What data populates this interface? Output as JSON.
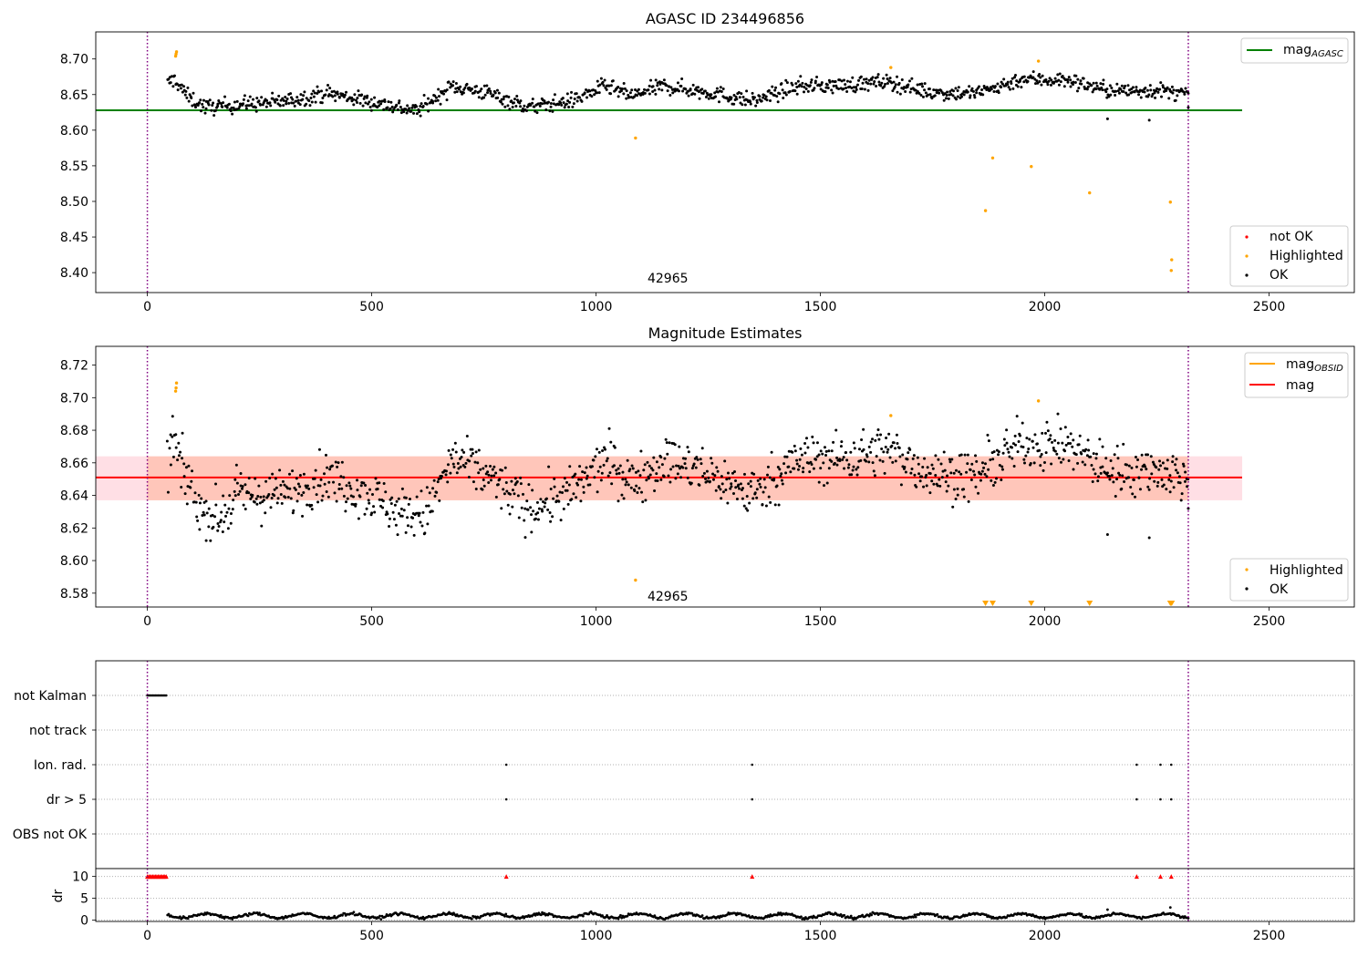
{
  "chart_data": [
    {
      "type": "scatter",
      "title": "AGASC ID 234496856",
      "xlim": [
        -115,
        2690
      ],
      "ylim": [
        8.372,
        8.738
      ],
      "xticks": [
        0,
        500,
        1000,
        1500,
        2000,
        2500
      ],
      "yticks": [
        8.4,
        8.45,
        8.5,
        8.55,
        8.6,
        8.65,
        8.7
      ],
      "ytick_labels": [
        "8.40",
        "8.45",
        "8.50",
        "8.55",
        "8.60",
        "8.65",
        "8.70"
      ],
      "grid": false,
      "vlines": [
        0,
        2320
      ],
      "obsid_labels": [
        {
          "x": 1160,
          "y": 8.386,
          "text": "42965"
        }
      ],
      "hline": {
        "name": "mag",
        "subscript": "AGASC",
        "value": 8.628,
        "x_range": [
          -115,
          2440
        ],
        "color": "#008000"
      },
      "legend_upper": {
        "placement": "top-right",
        "entries": [
          {
            "label": "mag",
            "subscript": "AGASC",
            "kind": "line",
            "color": "#008000"
          }
        ]
      },
      "legend_lower": {
        "placement": "bottom-right",
        "entries": [
          {
            "label": "not OK",
            "kind": "dot",
            "color": "#ff0000"
          },
          {
            "label": "Highlighted",
            "kind": "dot",
            "color": "#ffa500"
          },
          {
            "label": "OK",
            "kind": "dot",
            "color": "#000000"
          }
        ]
      },
      "series": [
        {
          "name": "OK",
          "color": "#000000",
          "generated": true,
          "trend": [
            [
              45,
              8.665
            ],
            [
              60,
              8.672
            ],
            [
              90,
              8.647
            ],
            [
              130,
              8.632
            ],
            [
              200,
              8.636
            ],
            [
              300,
              8.64
            ],
            [
              400,
              8.652
            ],
            [
              500,
              8.64
            ],
            [
              600,
              8.627
            ],
            [
              680,
              8.662
            ],
            [
              760,
              8.652
            ],
            [
              850,
              8.632
            ],
            [
              950,
              8.642
            ],
            [
              1020,
              8.662
            ],
            [
              1080,
              8.648
            ],
            [
              1150,
              8.662
            ],
            [
              1250,
              8.653
            ],
            [
              1350,
              8.641
            ],
            [
              1450,
              8.662
            ],
            [
              1550,
              8.663
            ],
            [
              1650,
              8.668
            ],
            [
              1750,
              8.653
            ],
            [
              1850,
              8.652
            ],
            [
              1950,
              8.672
            ],
            [
              2050,
              8.67
            ],
            [
              2150,
              8.655
            ],
            [
              2250,
              8.656
            ],
            [
              2320,
              8.65
            ]
          ],
          "noise": 0.0055,
          "count": 1150,
          "outliers": [
            [
              2140,
              8.616
            ],
            [
              2233,
              8.614
            ],
            [
              2320,
              8.632
            ]
          ]
        },
        {
          "name": "Highlighted",
          "color": "#ffa500",
          "points": [
            [
              63,
              8.704
            ],
            [
              64,
              8.707
            ],
            [
              65,
              8.71
            ],
            [
              1088,
              8.589
            ],
            [
              1657,
              8.688
            ],
            [
              1868,
              8.487
            ],
            [
              1884,
              8.561
            ],
            [
              1970,
              8.549
            ],
            [
              1986,
              8.697
            ],
            [
              2100,
              8.512
            ],
            [
              2280,
              8.499
            ],
            [
              2283,
              8.418
            ],
            [
              2282,
              8.403
            ]
          ]
        }
      ]
    },
    {
      "type": "scatter",
      "title": "Magnitude Estimates",
      "xlim": [
        -115,
        2690
      ],
      "ylim": [
        8.5715,
        8.7315
      ],
      "xticks": [
        0,
        500,
        1000,
        1500,
        2000,
        2500
      ],
      "yticks": [
        8.58,
        8.6,
        8.62,
        8.64,
        8.66,
        8.68,
        8.7,
        8.72
      ],
      "ytick_labels": [
        "8.58",
        "8.60",
        "8.62",
        "8.64",
        "8.66",
        "8.68",
        "8.70",
        "8.72"
      ],
      "grid": false,
      "vlines": [
        0,
        2320
      ],
      "obsid_labels": [
        {
          "x": 1160,
          "y": 8.5755,
          "text": "42965"
        }
      ],
      "mag": {
        "value": 8.651,
        "band": [
          8.637,
          8.664
        ],
        "x_range": [
          -115,
          2440
        ],
        "color": "#ff0000",
        "band_color": "#ffc0cb",
        "obsid_band_color": "#ffa07a",
        "obsid_x_range": [
          0,
          2320
        ]
      },
      "off_scale_markers": {
        "marker": "triangle-down",
        "color": "#ffa500",
        "x": [
          1868,
          1884,
          1970,
          2100,
          2280,
          2283
        ]
      },
      "legend_upper": {
        "placement": "top-right",
        "entries": [
          {
            "label": "mag",
            "subscript": "OBSID",
            "kind": "line",
            "color": "#ffa500"
          },
          {
            "label": "mag",
            "kind": "line",
            "color": "#ff0000"
          }
        ]
      },
      "legend_lower": {
        "placement": "bottom-right",
        "entries": [
          {
            "label": "Highlighted",
            "kind": "dot",
            "color": "#ffa500"
          },
          {
            "label": "OK",
            "kind": "dot",
            "color": "#000000"
          }
        ]
      },
      "series": [
        {
          "name": "OK",
          "color": "#000000",
          "generated": true,
          "trend": [
            [
              45,
              8.66
            ],
            [
              58,
              8.675
            ],
            [
              85,
              8.65
            ],
            [
              120,
              8.632
            ],
            [
              160,
              8.625
            ],
            [
              200,
              8.64
            ],
            [
              300,
              8.64
            ],
            [
              400,
              8.652
            ],
            [
              500,
              8.64
            ],
            [
              560,
              8.63
            ],
            [
              620,
              8.628
            ],
            [
              680,
              8.662
            ],
            [
              760,
              8.652
            ],
            [
              850,
              8.632
            ],
            [
              950,
              8.642
            ],
            [
              1020,
              8.662
            ],
            [
              1080,
              8.648
            ],
            [
              1150,
              8.662
            ],
            [
              1250,
              8.653
            ],
            [
              1350,
              8.641
            ],
            [
              1450,
              8.662
            ],
            [
              1550,
              8.663
            ],
            [
              1650,
              8.668
            ],
            [
              1750,
              8.653
            ],
            [
              1850,
              8.652
            ],
            [
              1950,
              8.672
            ],
            [
              2050,
              8.67
            ],
            [
              2150,
              8.655
            ],
            [
              2250,
              8.656
            ],
            [
              2320,
              8.65
            ]
          ],
          "noise": 0.0075,
          "count": 1150,
          "outliers": [
            [
              2140,
              8.616
            ],
            [
              2233,
              8.614
            ],
            [
              2320,
              8.632
            ]
          ]
        },
        {
          "name": "Highlighted",
          "color": "#ffa500",
          "points": [
            [
              63,
              8.704
            ],
            [
              64,
              8.706
            ],
            [
              65,
              8.709
            ],
            [
              1088,
              8.588
            ],
            [
              1657,
              8.689
            ],
            [
              1986,
              8.698
            ]
          ]
        }
      ]
    },
    {
      "type": "scatter",
      "title": "",
      "xlim": [
        -115,
        2690
      ],
      "categories": [
        "not Kalman",
        "not track",
        "Ion. rad.",
        "dr > 5",
        "OBS not OK"
      ],
      "grid": true,
      "vlines": [
        0,
        2320
      ],
      "flags": [
        {
          "row": "not Kalman",
          "x": [
            0,
            3,
            6,
            9,
            12,
            15,
            18,
            21,
            24,
            27,
            30,
            33,
            36,
            39,
            42
          ]
        },
        {
          "row": "not track",
          "x": []
        },
        {
          "row": "Ion. rad.",
          "x": [
            800,
            1348,
            2205,
            2258,
            2282
          ]
        },
        {
          "row": "dr > 5",
          "x": [
            800,
            1348,
            2205,
            2258,
            2282
          ]
        },
        {
          "row": "OBS not OK",
          "x": []
        }
      ]
    },
    {
      "type": "scatter",
      "title": "",
      "ylabel": "dr",
      "xlim": [
        -115,
        2690
      ],
      "ylim": [
        -0.3,
        11.8
      ],
      "yticks": [
        0,
        5,
        10
      ],
      "ytick_labels": [
        "0",
        "5",
        "10"
      ],
      "xticks": [
        0,
        500,
        1000,
        1500,
        2000,
        2500
      ],
      "grid": true,
      "vlines": [
        0,
        2320
      ],
      "capped": {
        "value": 10,
        "color": "#ff0000",
        "marker": "triangle-up",
        "x": [
          0,
          3,
          6,
          9,
          12,
          15,
          18,
          21,
          24,
          27,
          30,
          33,
          36,
          39,
          42,
          800,
          1348,
          2205,
          2258,
          2282
        ]
      },
      "series": [
        {
          "name": "dr",
          "color": "#000000",
          "generated": true,
          "x_range": [
            45,
            2320
          ],
          "base": 1.0,
          "noise": 0.6,
          "count": 900,
          "outliers": [
            [
              2140,
              2.4
            ],
            [
              2280,
              2.9
            ]
          ]
        }
      ]
    }
  ]
}
